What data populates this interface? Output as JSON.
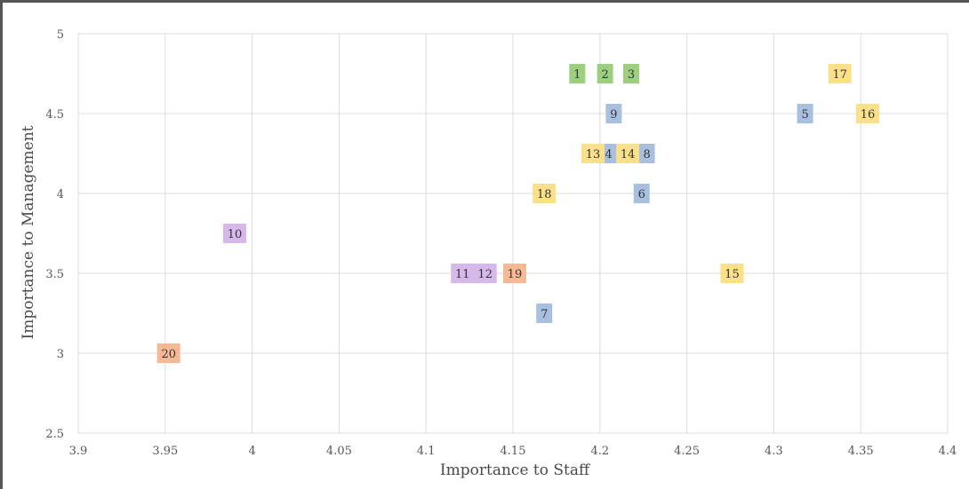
{
  "chart_data": {
    "type": "scatter",
    "title": "",
    "xlabel": "Importance to Staff",
    "ylabel": "Importance to Management",
    "xlim": [
      3.9,
      4.4
    ],
    "ylim": [
      2.5,
      5
    ],
    "x_ticks": [
      3.9,
      3.95,
      4,
      4.05,
      4.1,
      4.15,
      4.2,
      4.25,
      4.3,
      4.35,
      4.4
    ],
    "x_tick_labels": [
      "3.9",
      "3.95",
      "4",
      "4.05",
      "4.1",
      "4.15",
      "4.2",
      "4.25",
      "4.3",
      "4.35",
      "4.4"
    ],
    "y_ticks": [
      2.5,
      3,
      3.5,
      4,
      4.5,
      5
    ],
    "y_tick_labels": [
      "2.5",
      "3",
      "3.5",
      "4",
      "4.5",
      "5"
    ],
    "grid": true,
    "colors": {
      "green": "#9ccf7e",
      "blue": "#a9bfe0",
      "yellow": "#fbe08a",
      "purple": "#d6b8ea",
      "orange": "#f6b994"
    },
    "points": [
      {
        "label": "1",
        "x": 4.187,
        "y": 4.75,
        "color": "green"
      },
      {
        "label": "2",
        "x": 4.203,
        "y": 4.75,
        "color": "green"
      },
      {
        "label": "3",
        "x": 4.218,
        "y": 4.75,
        "color": "green"
      },
      {
        "label": "4",
        "x": 4.205,
        "y": 4.25,
        "color": "blue"
      },
      {
        "label": "5",
        "x": 4.318,
        "y": 4.5,
        "color": "blue"
      },
      {
        "label": "6",
        "x": 4.224,
        "y": 4.0,
        "color": "blue"
      },
      {
        "label": "7",
        "x": 4.168,
        "y": 3.25,
        "color": "blue"
      },
      {
        "label": "8",
        "x": 4.227,
        "y": 4.25,
        "color": "blue"
      },
      {
        "label": "9",
        "x": 4.208,
        "y": 4.5,
        "color": "blue"
      },
      {
        "label": "10",
        "x": 3.99,
        "y": 3.75,
        "color": "purple"
      },
      {
        "label": "11",
        "x": 4.121,
        "y": 3.5,
        "color": "purple"
      },
      {
        "label": "12",
        "x": 4.134,
        "y": 3.5,
        "color": "purple"
      },
      {
        "label": "13",
        "x": 4.196,
        "y": 4.25,
        "color": "yellow"
      },
      {
        "label": "14",
        "x": 4.216,
        "y": 4.25,
        "color": "yellow"
      },
      {
        "label": "15",
        "x": 4.276,
        "y": 3.5,
        "color": "yellow"
      },
      {
        "label": "16",
        "x": 4.354,
        "y": 4.5,
        "color": "yellow"
      },
      {
        "label": "17",
        "x": 4.338,
        "y": 4.75,
        "color": "yellow"
      },
      {
        "label": "18",
        "x": 4.168,
        "y": 4.0,
        "color": "yellow"
      },
      {
        "label": "19",
        "x": 4.151,
        "y": 3.5,
        "color": "orange"
      },
      {
        "label": "20",
        "x": 3.952,
        "y": 3.0,
        "color": "orange"
      }
    ]
  }
}
